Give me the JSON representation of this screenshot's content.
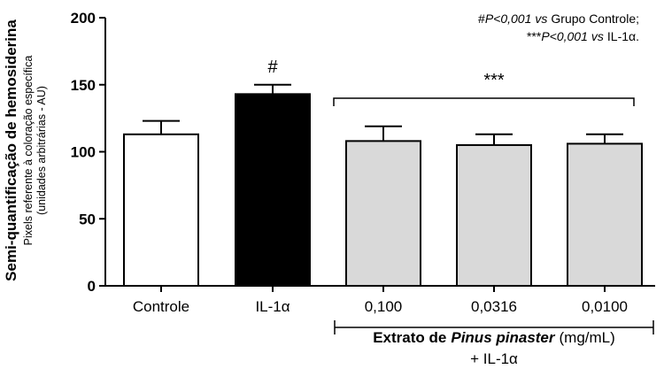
{
  "chart_data": {
    "type": "bar",
    "categories": [
      "Controle",
      "IL-1α",
      "0,100",
      "0,0316",
      "0,0100"
    ],
    "values": [
      113,
      143,
      108,
      105,
      106
    ],
    "errors": [
      10,
      7,
      11,
      8,
      7
    ],
    "bar_colors": [
      "#ffffff",
      "#000000",
      "#d9d9d9",
      "#d9d9d9",
      "#d9d9d9"
    ],
    "ylim": [
      0,
      200
    ],
    "yticks": [
      "0",
      "50",
      "100",
      "150",
      "200"
    ],
    "ylabel_main": "Semi-quantificação de hemosiderina",
    "ylabel_sub1": "Pixels referente à coloração específica",
    "ylabel_sub2": "(unidades arbitrárias - AU)",
    "grid": false,
    "annotations": {
      "hash": "#",
      "stars": "***"
    },
    "legend": {
      "line1_prefix": "#",
      "line1_stat": "P<0,001",
      "line1_vs": "vs",
      "line1_text": "Grupo Controle;",
      "line2_prefix": "***",
      "line2_stat": "P<0,001",
      "line2_vs": "vs",
      "line2_text": "IL-1α."
    },
    "group_label": {
      "bold_part": "Extrato de",
      "italic_part": "Pinus pinaster",
      "unit": "(mg/mL)",
      "line2": "+ IL-1α"
    }
  }
}
